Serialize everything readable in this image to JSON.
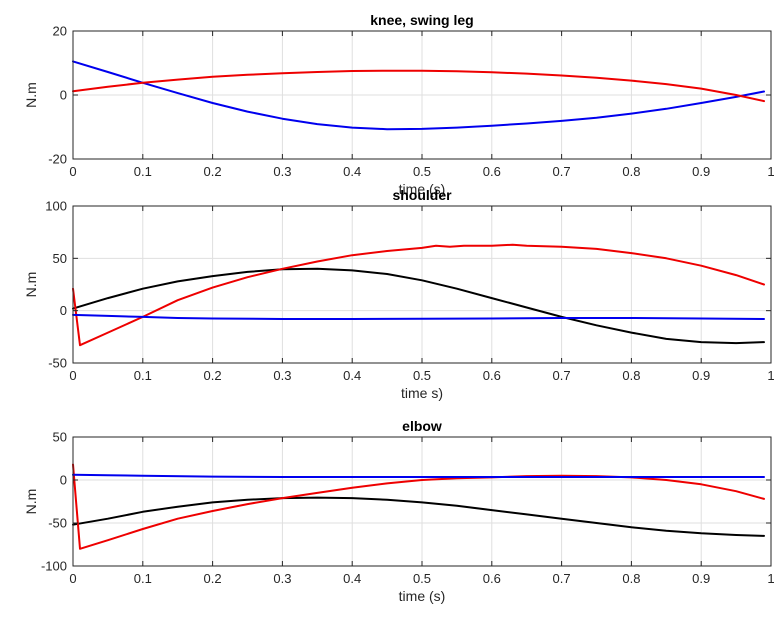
{
  "chart_data": [
    {
      "type": "line",
      "title": "knee, swing leg",
      "xlabel": "time (s)",
      "ylabel": "N.m",
      "xlim": [
        0,
        1
      ],
      "ylim": [
        -20,
        20
      ],
      "xticks": [
        "0",
        "0.1",
        "0.2",
        "0.3",
        "0.4",
        "0.5",
        "0.6",
        "0.7",
        "0.8",
        "0.9",
        "1"
      ],
      "yticks": [
        "-20",
        "0",
        "20"
      ],
      "grid": true,
      "series": [
        {
          "color": "#0000ee",
          "x": [
            0,
            0.05,
            0.1,
            0.15,
            0.2,
            0.25,
            0.3,
            0.35,
            0.4,
            0.45,
            0.5,
            0.55,
            0.6,
            0.65,
            0.7,
            0.75,
            0.8,
            0.85,
            0.9,
            0.95,
            0.99
          ],
          "y": [
            10.5,
            7.2,
            3.8,
            0.6,
            -2.5,
            -5.2,
            -7.4,
            -9.1,
            -10.2,
            -10.7,
            -10.6,
            -10.2,
            -9.6,
            -8.9,
            -8.1,
            -7.1,
            -5.8,
            -4.3,
            -2.5,
            -0.6,
            1.1
          ]
        },
        {
          "color": "#ee0000",
          "x": [
            0,
            0.05,
            0.1,
            0.15,
            0.2,
            0.25,
            0.3,
            0.35,
            0.4,
            0.45,
            0.5,
            0.55,
            0.6,
            0.65,
            0.7,
            0.75,
            0.8,
            0.85,
            0.9,
            0.95,
            0.99
          ],
          "y": [
            1.2,
            2.6,
            3.8,
            4.8,
            5.7,
            6.3,
            6.8,
            7.2,
            7.5,
            7.6,
            7.6,
            7.4,
            7.1,
            6.7,
            6.1,
            5.4,
            4.5,
            3.4,
            2.0,
            0.0,
            -1.9
          ]
        }
      ]
    },
    {
      "type": "line",
      "title": "shoulder",
      "xlabel": "time s)",
      "ylabel": "N.m",
      "xlim": [
        0,
        1
      ],
      "ylim": [
        -50,
        100
      ],
      "xticks": [
        "0",
        "0.1",
        "0.2",
        "0.3",
        "0.4",
        "0.5",
        "0.6",
        "0.7",
        "0.8",
        "0.9",
        "1"
      ],
      "yticks": [
        "-50",
        "0",
        "50",
        "100"
      ],
      "grid": true,
      "series": [
        {
          "color": "#000000",
          "x": [
            0,
            0.05,
            0.1,
            0.15,
            0.2,
            0.25,
            0.3,
            0.35,
            0.4,
            0.45,
            0.5,
            0.55,
            0.6,
            0.65,
            0.7,
            0.75,
            0.8,
            0.85,
            0.9,
            0.95,
            0.99
          ],
          "y": [
            2,
            12,
            21,
            28,
            33,
            37,
            39.5,
            40,
            38.5,
            35,
            29,
            21,
            12,
            3,
            -6,
            -14,
            -21,
            -27,
            -30,
            -31,
            -30
          ]
        },
        {
          "color": "#ee0000",
          "x": [
            0,
            0.01,
            0.05,
            0.1,
            0.15,
            0.2,
            0.25,
            0.3,
            0.35,
            0.4,
            0.45,
            0.5,
            0.52,
            0.54,
            0.56,
            0.6,
            0.63,
            0.65,
            0.7,
            0.75,
            0.8,
            0.85,
            0.9,
            0.95,
            0.99
          ],
          "y": [
            21,
            -33,
            -21,
            -6,
            10,
            22,
            32,
            40,
            47,
            53,
            57,
            60,
            62,
            61,
            62,
            62,
            63,
            62,
            61,
            59,
            55,
            50,
            43,
            34,
            25
          ]
        },
        {
          "color": "#0000ee",
          "x": [
            0,
            0.05,
            0.1,
            0.15,
            0.2,
            0.3,
            0.4,
            0.5,
            0.6,
            0.7,
            0.8,
            0.9,
            0.99
          ],
          "y": [
            -4,
            -5,
            -6,
            -7,
            -7.5,
            -8,
            -8,
            -7.8,
            -7.5,
            -7,
            -7,
            -7.5,
            -8
          ]
        }
      ]
    },
    {
      "type": "line",
      "title": "elbow",
      "xlabel": "time (s)",
      "ylabel": "N.m",
      "xlim": [
        0,
        1
      ],
      "ylim": [
        -100,
        50
      ],
      "xticks": [
        "0",
        "0.1",
        "0.2",
        "0.3",
        "0.4",
        "0.5",
        "0.6",
        "0.7",
        "0.8",
        "0.9",
        "1"
      ],
      "yticks": [
        "-100",
        "-50",
        "0",
        "50"
      ],
      "grid": true,
      "series": [
        {
          "color": "#000000",
          "x": [
            0,
            0.05,
            0.1,
            0.15,
            0.2,
            0.25,
            0.3,
            0.35,
            0.4,
            0.45,
            0.5,
            0.55,
            0.6,
            0.65,
            0.7,
            0.75,
            0.8,
            0.85,
            0.9,
            0.95,
            0.99
          ],
          "y": [
            -52,
            -45,
            -37,
            -31,
            -26,
            -23,
            -21,
            -20.5,
            -21,
            -23,
            -26,
            -30,
            -35,
            -40,
            -45,
            -50,
            -55,
            -59,
            -62,
            -64,
            -65
          ]
        },
        {
          "color": "#ee0000",
          "x": [
            0,
            0.01,
            0.05,
            0.1,
            0.15,
            0.2,
            0.25,
            0.3,
            0.35,
            0.4,
            0.45,
            0.5,
            0.55,
            0.6,
            0.65,
            0.7,
            0.75,
            0.8,
            0.85,
            0.9,
            0.95,
            0.99
          ],
          "y": [
            18,
            -80,
            -70,
            -57,
            -45,
            -36,
            -28,
            -21,
            -15,
            -9,
            -4,
            0,
            2,
            3,
            4.5,
            5,
            4.5,
            3,
            0,
            -5,
            -13,
            -22
          ]
        },
        {
          "color": "#0000ee",
          "x": [
            0,
            0.05,
            0.1,
            0.2,
            0.3,
            0.4,
            0.5,
            0.6,
            0.7,
            0.8,
            0.9,
            0.99
          ],
          "y": [
            6,
            5.5,
            5,
            4,
            3.5,
            3.5,
            3.5,
            3.5,
            3.5,
            3.5,
            3.5,
            3.5
          ]
        }
      ]
    }
  ]
}
